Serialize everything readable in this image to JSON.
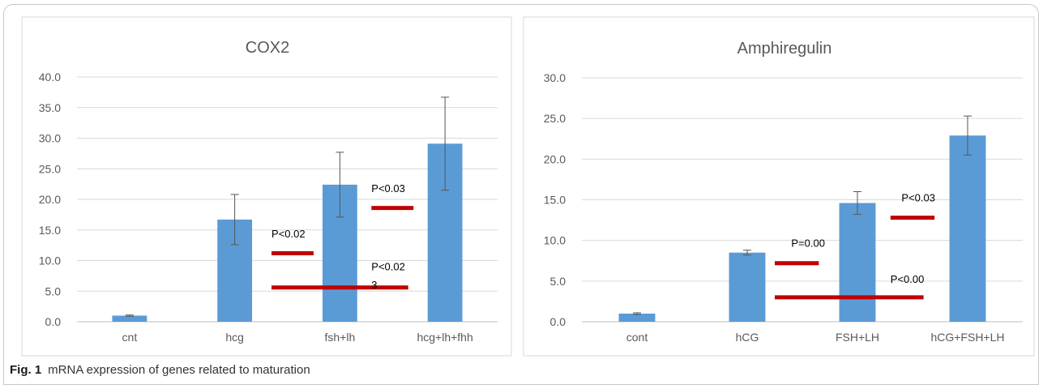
{
  "caption": {
    "label": "Fig. 1",
    "text": "mRNA expression of genes related to maturation"
  },
  "colors": {
    "bar": "#5b9bd5",
    "sig_line": "#c00000",
    "grid": "#d9d9d9",
    "axis_text": "#595959"
  },
  "chart_data": [
    {
      "type": "bar",
      "title": "COX2",
      "xlabel": "",
      "ylabel": "",
      "categories": [
        "cnt",
        "hcg",
        "fsh+lh",
        "hcg+lh+fhh"
      ],
      "values": [
        1.0,
        16.7,
        22.4,
        29.1
      ],
      "errors": [
        0.1,
        4.1,
        5.3,
        7.6
      ],
      "ylim": [
        0,
        40
      ],
      "yticks": [
        "0.0",
        "5.0",
        "10.0",
        "15.0",
        "20.0",
        "25.0",
        "30.0",
        "35.0",
        "40.0"
      ],
      "grid": true,
      "annotations": [
        {
          "text": "P<0.02",
          "line_from": 1.35,
          "line_to": 1.75,
          "line_y": 11.2,
          "text_x": 1.35,
          "text_y": 13.8
        },
        {
          "text": "P<0.03",
          "line_from": 2.3,
          "line_to": 2.7,
          "line_y": 18.6,
          "text_x": 2.3,
          "text_y": 21.2
        },
        {
          "text": "P<0.02",
          "line_from": 1.35,
          "line_to": 2.65,
          "line_y": 5.6,
          "text_x": 2.3,
          "text_y": 8.4
        },
        {
          "text": "3",
          "line_from": null,
          "line_to": null,
          "line_y": null,
          "text_x": 2.3,
          "text_y": 5.4
        }
      ]
    },
    {
      "type": "bar",
      "title": "Amphiregulin",
      "xlabel": "",
      "ylabel": "",
      "categories": [
        "cont",
        "hCG",
        "FSH+LH",
        "hCG+FSH+LH"
      ],
      "values": [
        1.0,
        8.5,
        14.6,
        22.9
      ],
      "errors": [
        0.1,
        0.3,
        1.4,
        2.4
      ],
      "ylim": [
        0,
        30
      ],
      "yticks": [
        "0.0",
        "5.0",
        "10.0",
        "15.0",
        "20.0",
        "25.0",
        "30.0"
      ],
      "grid": true,
      "annotations": [
        {
          "text": "P=0.00",
          "line_from": 1.25,
          "line_to": 1.65,
          "line_y": 7.2,
          "text_x": 1.4,
          "text_y": 9.2
        },
        {
          "text": "P<0.03",
          "line_from": 2.3,
          "line_to": 2.7,
          "line_y": 12.8,
          "text_x": 2.4,
          "text_y": 14.8
        },
        {
          "text": "P<0.00",
          "line_from": 1.25,
          "line_to": 2.6,
          "line_y": 3.0,
          "text_x": 2.3,
          "text_y": 4.8
        }
      ]
    }
  ]
}
